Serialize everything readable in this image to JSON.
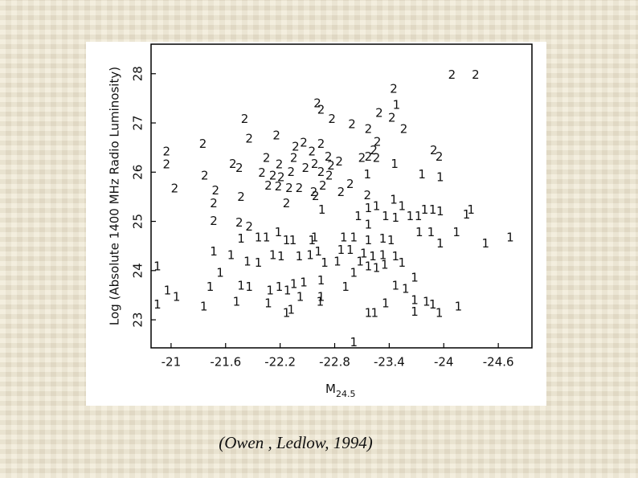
{
  "chart_data": {
    "type": "scatter",
    "ylabel": "Log (Absolute 1400 MHz Radio Luminosity)",
    "xlabel": {
      "text": "M",
      "subscript": "24.5"
    },
    "xlim": [
      -20.78,
      -24.97
    ],
    "ylim": [
      22.43,
      28.6
    ],
    "xticks": [
      -21,
      -21.6,
      -22.2,
      -22.8,
      -23.4,
      -24,
      -24.6
    ],
    "yticks": [
      23,
      24,
      25,
      26,
      27,
      28
    ],
    "series": [
      {
        "name": "2",
        "color": "#000000",
        "x": [
          -24.09,
          -24.35,
          -23.45,
          -22.61,
          -22.65,
          -21.81,
          -22.77,
          -22.99,
          -23.29,
          -23.17,
          -23.43,
          -23.56,
          -22.16,
          -21.86,
          -21.35,
          -22.37,
          -22.46,
          -22.65,
          -22.55,
          -23.27,
          -23.23,
          -23.17,
          -23.89,
          -23.95,
          -20.95,
          -20.95,
          -21.68,
          -21.75,
          -22.05,
          -22.19,
          -22.35,
          -22.48,
          -22.58,
          -22.73,
          -22.76,
          -22.85,
          -23.1,
          -23.26,
          -22.0,
          -22.12,
          -22.21,
          -22.32,
          -22.65,
          -22.74,
          -21.37,
          -21.04,
          -22.07,
          -22.18,
          -22.3,
          -22.41,
          -22.57,
          -22.67,
          -22.87,
          -22.97,
          -21.49,
          -21.77,
          -21.47,
          -22.27,
          -23.16,
          -21.47,
          -21.75,
          -21.86,
          -22.59
        ],
        "y": [
          27.97,
          27.97,
          27.69,
          27.39,
          27.26,
          27.07,
          27.07,
          26.97,
          27.2,
          26.87,
          27.1,
          26.87,
          26.74,
          26.67,
          26.57,
          26.51,
          26.59,
          26.57,
          26.41,
          26.61,
          26.44,
          26.31,
          26.44,
          26.31,
          26.41,
          26.15,
          26.16,
          26.08,
          26.28,
          26.15,
          26.28,
          26.08,
          26.16,
          26.31,
          26.13,
          26.21,
          26.28,
          26.28,
          25.98,
          25.92,
          25.89,
          26.0,
          26.0,
          25.92,
          25.92,
          25.66,
          25.72,
          25.7,
          25.67,
          25.67,
          25.59,
          25.72,
          25.59,
          25.75,
          25.62,
          25.49,
          25.36,
          25.36,
          25.52,
          25.0,
          24.97,
          24.89,
          25.51
        ]
      },
      {
        "name": "1",
        "color": "#000000",
        "x": [
          -23.48,
          -23.46,
          -23.16,
          -23.76,
          -23.96,
          -22.66,
          -23.17,
          -23.26,
          -23.45,
          -23.54,
          -23.36,
          -23.47,
          -23.63,
          -23.72,
          -23.79,
          -23.88,
          -23.96,
          -24.3,
          -24.25,
          -23.06,
          -23.17,
          -23.73,
          -23.86,
          -24.14,
          -23.96,
          -24.46,
          -24.73,
          -21.77,
          -21.96,
          -22.05,
          -22.18,
          -22.27,
          -22.34,
          -22.55,
          -22.58,
          -22.9,
          -23.01,
          -23.17,
          -23.33,
          -23.42,
          -21.47,
          -21.66,
          -22.12,
          -22.21,
          -22.41,
          -22.53,
          -22.62,
          -22.87,
          -22.97,
          -23.12,
          -23.22,
          -23.33,
          -23.47,
          -21.84,
          -21.96,
          -22.69,
          -22.83,
          -23.08,
          -23.17,
          -23.26,
          -23.35,
          -23.54,
          -20.85,
          -21.54,
          -23.01,
          -23.68,
          -20.96,
          -21.06,
          -21.43,
          -21.77,
          -21.86,
          -22.09,
          -22.19,
          -22.35,
          -22.46,
          -22.28,
          -22.42,
          -22.65,
          -22.65,
          -22.92,
          -23.47,
          -23.58,
          -23.68,
          -20.85,
          -21.36,
          -21.72,
          -22.07,
          -22.64,
          -22.27,
          -22.32,
          -23.17,
          -23.24,
          -23.36,
          -23.68,
          -23.81,
          -23.88,
          -23.95,
          -24.16,
          -23.01
        ],
        "y": [
          27.36,
          26.16,
          25.95,
          25.95,
          25.89,
          25.23,
          25.26,
          25.3,
          25.43,
          25.3,
          25.1,
          25.07,
          25.1,
          25.1,
          25.23,
          25.23,
          25.2,
          25.23,
          25.13,
          25.1,
          24.93,
          24.77,
          24.77,
          24.77,
          24.54,
          24.54,
          24.67,
          24.64,
          24.67,
          24.67,
          24.77,
          24.61,
          24.61,
          24.61,
          24.67,
          24.67,
          24.67,
          24.61,
          24.64,
          24.61,
          24.38,
          24.31,
          24.31,
          24.28,
          24.28,
          24.31,
          24.38,
          24.41,
          24.41,
          24.34,
          24.28,
          24.31,
          24.28,
          24.18,
          24.15,
          24.15,
          24.18,
          24.18,
          24.08,
          24.05,
          24.11,
          24.15,
          24.08,
          23.95,
          23.95,
          23.85,
          23.59,
          23.46,
          23.66,
          23.69,
          23.66,
          23.59,
          23.66,
          23.72,
          23.75,
          23.59,
          23.46,
          23.79,
          23.46,
          23.66,
          23.69,
          23.62,
          23.39,
          23.3,
          23.26,
          23.36,
          23.33,
          23.36,
          23.13,
          23.2,
          23.13,
          23.13,
          23.33,
          23.16,
          23.36,
          23.3,
          23.13,
          23.26,
          22.54
        ]
      }
    ]
  },
  "caption": "(Owen , Ledlow, 1994)"
}
